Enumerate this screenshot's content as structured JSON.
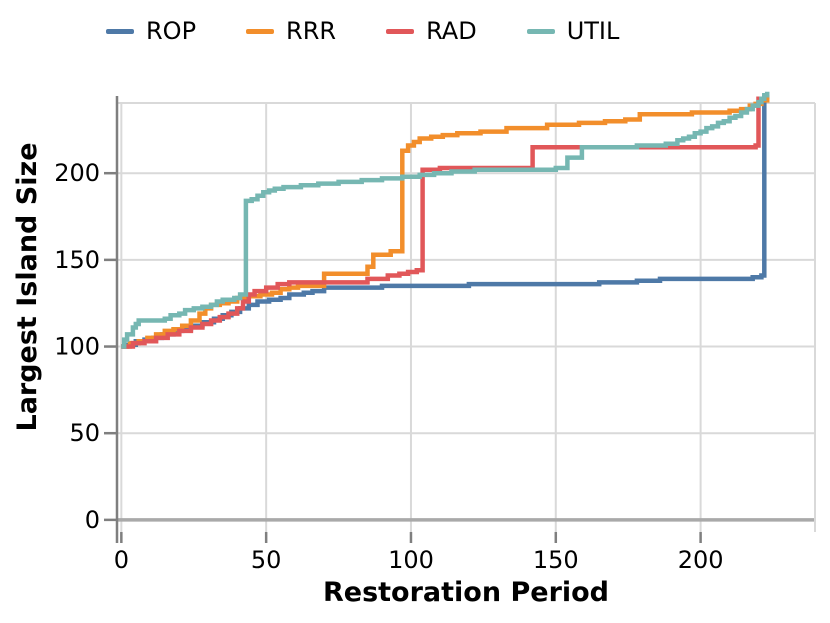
{
  "chart_data": {
    "type": "line",
    "step_mode": "after",
    "xlabel": "Restoration Period",
    "ylabel": "Largest Island Size",
    "xlim": [
      -1.5,
      239.5
    ],
    "ylim": [
      -7,
      240.5
    ],
    "x_ticks": [
      "0",
      "50",
      "100",
      "150",
      "200"
    ],
    "x_tick_values": [
      0,
      50,
      100,
      150,
      200
    ],
    "y_ticks": [
      "0",
      "50",
      "100",
      "150",
      "200"
    ],
    "y_tick_values": [
      0,
      50,
      100,
      150,
      200
    ],
    "grid": true,
    "legend_position": "top",
    "colors": {
      "grid": "#d9d9d9",
      "baseline": "#a9a9a9",
      "spine": "#7f7f7f"
    },
    "series": [
      {
        "name": "ROP",
        "color": "#4e79a7",
        "points": [
          [
            0,
            100
          ],
          [
            2,
            101
          ],
          [
            5,
            103
          ],
          [
            8,
            104
          ],
          [
            11,
            105
          ],
          [
            14,
            107
          ],
          [
            18,
            109
          ],
          [
            21,
            110
          ],
          [
            24,
            112
          ],
          [
            28,
            114
          ],
          [
            32,
            116
          ],
          [
            35,
            118
          ],
          [
            38,
            120
          ],
          [
            41,
            122
          ],
          [
            44,
            124
          ],
          [
            47,
            126
          ],
          [
            51,
            127
          ],
          [
            55,
            128
          ],
          [
            58,
            130
          ],
          [
            63,
            131
          ],
          [
            66,
            132
          ],
          [
            70,
            134
          ],
          [
            90,
            135
          ],
          [
            120,
            136
          ],
          [
            150,
            136
          ],
          [
            165,
            137
          ],
          [
            178,
            138
          ],
          [
            186,
            139
          ],
          [
            218,
            140
          ],
          [
            221,
            141
          ],
          [
            222,
            244
          ],
          [
            223,
            245
          ]
        ]
      },
      {
        "name": "RRR",
        "color": "#f28e2b",
        "points": [
          [
            0,
            100
          ],
          [
            3,
            102
          ],
          [
            6,
            103
          ],
          [
            9,
            105
          ],
          [
            12,
            107
          ],
          [
            15,
            109
          ],
          [
            18,
            110
          ],
          [
            21,
            112
          ],
          [
            24,
            115
          ],
          [
            27,
            119
          ],
          [
            29,
            122
          ],
          [
            31,
            124
          ],
          [
            34,
            125
          ],
          [
            37,
            126
          ],
          [
            40,
            128
          ],
          [
            44,
            129
          ],
          [
            48,
            130
          ],
          [
            52,
            131
          ],
          [
            55,
            133
          ],
          [
            58,
            134
          ],
          [
            61,
            135
          ],
          [
            70,
            142
          ],
          [
            85,
            146
          ],
          [
            87,
            153
          ],
          [
            93,
            155
          ],
          [
            97,
            213
          ],
          [
            99,
            216
          ],
          [
            101,
            218
          ],
          [
            103,
            220
          ],
          [
            107,
            221
          ],
          [
            111,
            222
          ],
          [
            116,
            223
          ],
          [
            124,
            224
          ],
          [
            133,
            226
          ],
          [
            147,
            228
          ],
          [
            158,
            229
          ],
          [
            167,
            230
          ],
          [
            174,
            231
          ],
          [
            179,
            234
          ],
          [
            197,
            235
          ],
          [
            210,
            236
          ],
          [
            214,
            237
          ],
          [
            217,
            239
          ],
          [
            219,
            240
          ],
          [
            221,
            242
          ],
          [
            223,
            245
          ]
        ]
      },
      {
        "name": "RAD",
        "color": "#e15759",
        "points": [
          [
            0,
            100
          ],
          [
            4,
            102
          ],
          [
            8,
            103
          ],
          [
            12,
            105
          ],
          [
            16,
            107
          ],
          [
            20,
            109
          ],
          [
            24,
            111
          ],
          [
            28,
            113
          ],
          [
            31,
            115
          ],
          [
            34,
            117
          ],
          [
            37,
            119
          ],
          [
            40,
            122
          ],
          [
            42,
            126
          ],
          [
            44,
            130
          ],
          [
            46,
            132
          ],
          [
            50,
            134
          ],
          [
            54,
            136
          ],
          [
            58,
            137
          ],
          [
            85,
            139
          ],
          [
            92,
            141
          ],
          [
            96,
            142
          ],
          [
            99,
            143
          ],
          [
            102,
            144
          ],
          [
            104,
            202
          ],
          [
            110,
            203
          ],
          [
            142,
            215
          ],
          [
            219,
            216
          ],
          [
            220,
            243
          ],
          [
            222,
            244
          ]
        ]
      },
      {
        "name": "UTIL",
        "color": "#76b7b2",
        "points": [
          [
            0,
            100
          ],
          [
            1,
            104
          ],
          [
            2,
            107
          ],
          [
            4,
            111
          ],
          [
            5,
            113
          ],
          [
            6,
            115
          ],
          [
            15,
            116
          ],
          [
            17,
            118
          ],
          [
            20,
            119
          ],
          [
            22,
            121
          ],
          [
            25,
            122
          ],
          [
            28,
            123
          ],
          [
            31,
            124
          ],
          [
            33,
            126
          ],
          [
            35,
            127
          ],
          [
            39,
            128
          ],
          [
            41,
            130
          ],
          [
            43,
            184
          ],
          [
            45,
            185
          ],
          [
            47,
            187
          ],
          [
            49,
            189
          ],
          [
            51,
            190
          ],
          [
            53,
            191
          ],
          [
            56,
            192
          ],
          [
            62,
            193
          ],
          [
            68,
            194
          ],
          [
            75,
            195
          ],
          [
            83,
            196
          ],
          [
            90,
            197
          ],
          [
            97,
            198
          ],
          [
            103,
            199
          ],
          [
            108,
            200
          ],
          [
            114,
            201
          ],
          [
            122,
            202
          ],
          [
            150,
            203
          ],
          [
            154,
            209
          ],
          [
            159,
            215
          ],
          [
            178,
            216
          ],
          [
            188,
            217
          ],
          [
            192,
            219
          ],
          [
            194,
            220
          ],
          [
            196,
            221
          ],
          [
            198,
            223
          ],
          [
            200,
            224
          ],
          [
            202,
            226
          ],
          [
            204,
            227
          ],
          [
            206,
            229
          ],
          [
            208,
            230
          ],
          [
            210,
            232
          ],
          [
            212,
            233
          ],
          [
            214,
            235
          ],
          [
            216,
            237
          ],
          [
            218,
            239
          ],
          [
            220,
            241
          ],
          [
            221,
            243
          ],
          [
            222,
            245
          ],
          [
            223,
            247
          ]
        ]
      }
    ]
  }
}
